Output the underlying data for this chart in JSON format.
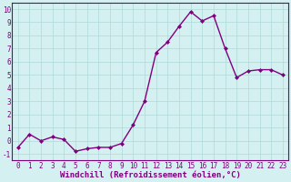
{
  "x": [
    0,
    1,
    2,
    3,
    4,
    5,
    6,
    7,
    8,
    9,
    10,
    11,
    12,
    13,
    14,
    15,
    16,
    17,
    18,
    19,
    20,
    21,
    22,
    23
  ],
  "y": [
    -0.5,
    0.5,
    0.0,
    0.3,
    0.1,
    -0.8,
    -0.6,
    -0.5,
    -0.5,
    -0.2,
    1.2,
    3.0,
    6.7,
    7.5,
    8.7,
    9.8,
    9.1,
    9.5,
    7.0,
    4.8,
    5.3,
    5.4,
    5.4,
    5.0
  ],
  "line_color": "#800080",
  "marker": "D",
  "marker_size": 2,
  "bg_color": "#d4f0f0",
  "grid_color": "#b0d8d8",
  "xlabel": "Windchill (Refroidissement éolien,°C)",
  "xlabel_color": "#800080",
  "tick_color": "#800080",
  "yticks": [
    -1,
    0,
    1,
    2,
    3,
    4,
    5,
    6,
    7,
    8,
    9,
    10
  ],
  "ylim": [
    -1.5,
    10.5
  ],
  "xlim": [
    -0.5,
    23.5
  ],
  "linewidth": 1.0,
  "tick_fontsize": 5.5,
  "xlabel_fontsize": 6.5
}
